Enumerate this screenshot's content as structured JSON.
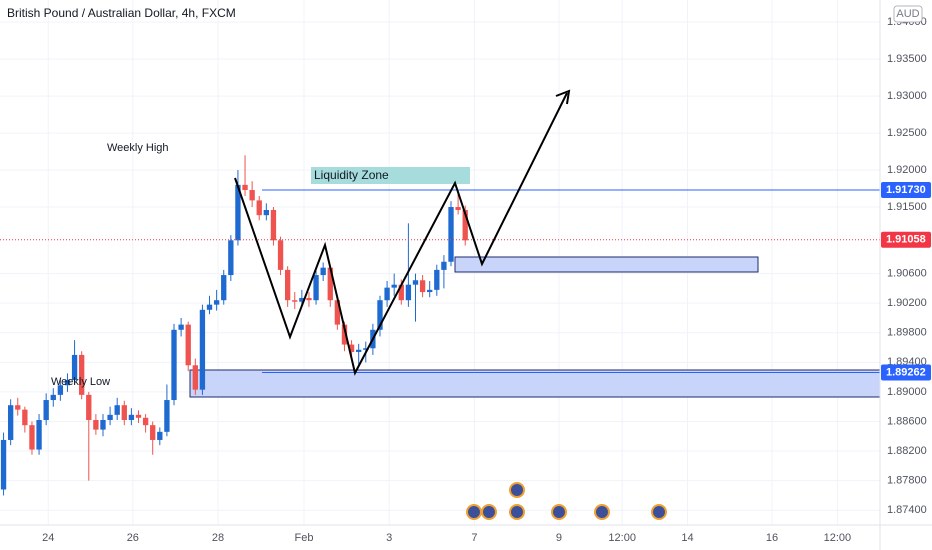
{
  "chart_data": {
    "type": "candlestick",
    "title": "British Pound / Australian Dollar, 4h, FXCM",
    "currency": "AUD",
    "up_color": "#1e6ad1",
    "down_color": "#ef5350",
    "annotations": [
      "Weekly High",
      "Weekly Low",
      "Liquidity Zone"
    ],
    "candles": [
      [
        1.8768,
        1.8845,
        1.876,
        1.8835
      ],
      [
        1.8835,
        1.889,
        1.8828,
        1.8882
      ],
      [
        1.8882,
        1.8892,
        1.8868,
        1.8876
      ],
      [
        1.8876,
        1.888,
        1.8845,
        1.8855
      ],
      [
        1.8855,
        1.886,
        1.8815,
        1.8822
      ],
      [
        1.8822,
        1.887,
        1.8815,
        1.8862
      ],
      [
        1.8862,
        1.8898,
        1.8855,
        1.8889
      ],
      [
        1.8889,
        1.8905,
        1.888,
        1.8896
      ],
      [
        1.8896,
        1.8916,
        1.8888,
        1.8909
      ],
      [
        1.8909,
        1.8925,
        1.89,
        1.8916
      ],
      [
        1.8916,
        1.897,
        1.891,
        1.895
      ],
      [
        1.895,
        1.8955,
        1.889,
        1.8896
      ],
      [
        1.8896,
        1.89,
        1.878,
        1.8862
      ],
      [
        1.8862,
        1.887,
        1.8842,
        1.8849
      ],
      [
        1.8849,
        1.887,
        1.884,
        1.8862
      ],
      [
        1.8862,
        1.888,
        1.8855,
        1.8869
      ],
      [
        1.8869,
        1.8892,
        1.8862,
        1.8882
      ],
      [
        1.8882,
        1.8888,
        1.8855,
        1.8862
      ],
      [
        1.8862,
        1.8878,
        1.8855,
        1.8869
      ],
      [
        1.8869,
        1.8875,
        1.8858,
        1.8865
      ],
      [
        1.8865,
        1.887,
        1.8845,
        1.8855
      ],
      [
        1.8855,
        1.886,
        1.8815,
        1.8835
      ],
      [
        1.8835,
        1.8852,
        1.8828,
        1.8846
      ],
      [
        1.8846,
        1.891,
        1.884,
        1.8889
      ],
      [
        1.8889,
        1.8992,
        1.8882,
        1.8984
      ],
      [
        1.8984,
        1.9,
        1.8975,
        1.8991
      ],
      [
        1.8991,
        1.8995,
        1.8928,
        1.8936
      ],
      [
        1.8936,
        1.8945,
        1.8896,
        1.8903
      ],
      [
        1.8903,
        1.9018,
        1.8896,
        1.9011
      ],
      [
        1.9011,
        1.903,
        1.9005,
        1.9018
      ],
      [
        1.9018,
        1.9038,
        1.901,
        1.9024
      ],
      [
        1.9024,
        1.9065,
        1.9018,
        1.9058
      ],
      [
        1.9058,
        1.9112,
        1.905,
        1.9105
      ],
      [
        1.9105,
        1.92,
        1.9098,
        1.918
      ],
      [
        1.918,
        1.922,
        1.9165,
        1.9173
      ],
      [
        1.9173,
        1.9185,
        1.915,
        1.9159
      ],
      [
        1.9159,
        1.9165,
        1.9132,
        1.9139
      ],
      [
        1.9139,
        1.9155,
        1.9132,
        1.9146
      ],
      [
        1.9146,
        1.915,
        1.9098,
        1.9105
      ],
      [
        1.9105,
        1.911,
        1.9058,
        1.9065
      ],
      [
        1.9065,
        1.907,
        1.9015,
        1.9024
      ],
      [
        1.9024,
        1.9035,
        1.9012,
        1.9022
      ],
      [
        1.9022,
        1.9038,
        1.9015,
        1.9027
      ],
      [
        1.9027,
        1.9035,
        1.9015,
        1.9024
      ],
      [
        1.9024,
        1.9065,
        1.9018,
        1.9058
      ],
      [
        1.9058,
        1.9075,
        1.905,
        1.9068
      ],
      [
        1.9068,
        1.9072,
        1.9015,
        1.9024
      ],
      [
        1.9024,
        1.903,
        1.8984,
        1.8991
      ],
      [
        1.8991,
        1.8995,
        1.8955,
        1.8964
      ],
      [
        1.8964,
        1.897,
        1.8945,
        1.8954
      ],
      [
        1.8954,
        1.8965,
        1.8935,
        1.8957
      ],
      [
        1.8957,
        1.8968,
        1.894,
        1.8959
      ],
      [
        1.8959,
        1.8992,
        1.895,
        1.8984
      ],
      [
        1.8984,
        1.903,
        1.8975,
        1.9024
      ],
      [
        1.9024,
        1.905,
        1.9015,
        1.9041
      ],
      [
        1.9041,
        1.906,
        1.903,
        1.9045
      ],
      [
        1.9045,
        1.9052,
        1.9018,
        1.9024
      ],
      [
        1.9024,
        1.9128,
        1.9015,
        1.9045
      ],
      [
        1.9045,
        1.906,
        1.8995,
        1.9051
      ],
      [
        1.9051,
        1.9058,
        1.9028,
        1.9035
      ],
      [
        1.9035,
        1.905,
        1.9028,
        1.9038
      ],
      [
        1.9038,
        1.9072,
        1.903,
        1.9065
      ],
      [
        1.9065,
        1.9085,
        1.904,
        1.9076
      ],
      [
        1.9076,
        1.9158,
        1.907,
        1.915
      ],
      [
        1.915,
        1.917,
        1.914,
        1.9146
      ],
      [
        1.9146,
        1.9152,
        1.9098,
        1.9105
      ]
    ],
    "xlim": [
      -0.5,
      123.4
    ],
    "xticks": [
      {
        "value": 6.3,
        "label": "24"
      },
      {
        "value": 18.2,
        "label": "26"
      },
      {
        "value": 30.2,
        "label": "28"
      },
      {
        "value": 42.3,
        "label": "Feb"
      },
      {
        "value": 54.3,
        "label": "3"
      },
      {
        "value": 66.3,
        "label": "7"
      },
      {
        "value": 78.2,
        "label": "9"
      },
      {
        "value": 87.1,
        "label": "12:00"
      },
      {
        "value": 96.3,
        "label": "14"
      },
      {
        "value": 108.2,
        "label": "16"
      },
      {
        "value": 117.4,
        "label": "12:00"
      }
    ],
    "ylim": [
      1.872,
      1.943
    ],
    "yticks": [
      {
        "value": 1.874,
        "label": "1.87400"
      },
      {
        "value": 1.878,
        "label": "1.87800"
      },
      {
        "value": 1.882,
        "label": "1.88200"
      },
      {
        "value": 1.886,
        "label": "1.88600"
      },
      {
        "value": 1.89,
        "label": "1.89000"
      },
      {
        "value": 1.894,
        "label": "1.89400"
      },
      {
        "value": 1.898,
        "label": "1.89800"
      },
      {
        "value": 1.902,
        "label": "1.90200"
      },
      {
        "value": 1.906,
        "label": "1.90600"
      },
      {
        "value": 1.915,
        "label": "1.91500"
      },
      {
        "value": 1.92,
        "label": "1.92000"
      },
      {
        "value": 1.925,
        "label": "1.92500"
      },
      {
        "value": 1.93,
        "label": "1.93000"
      },
      {
        "value": 1.935,
        "label": "1.93500"
      },
      {
        "value": 1.94,
        "label": "1.94000"
      }
    ],
    "price_lines": [
      {
        "value": 1.9173,
        "label": "1.91730",
        "color": "#2962ff",
        "style": "solid"
      },
      {
        "value": 1.91058,
        "label": "1.91058",
        "color": "#f23645",
        "style": "dotted"
      },
      {
        "value": 1.89262,
        "label": "1.89262",
        "color": "#2962ff",
        "style": "solid"
      }
    ],
    "grid": true
  }
}
